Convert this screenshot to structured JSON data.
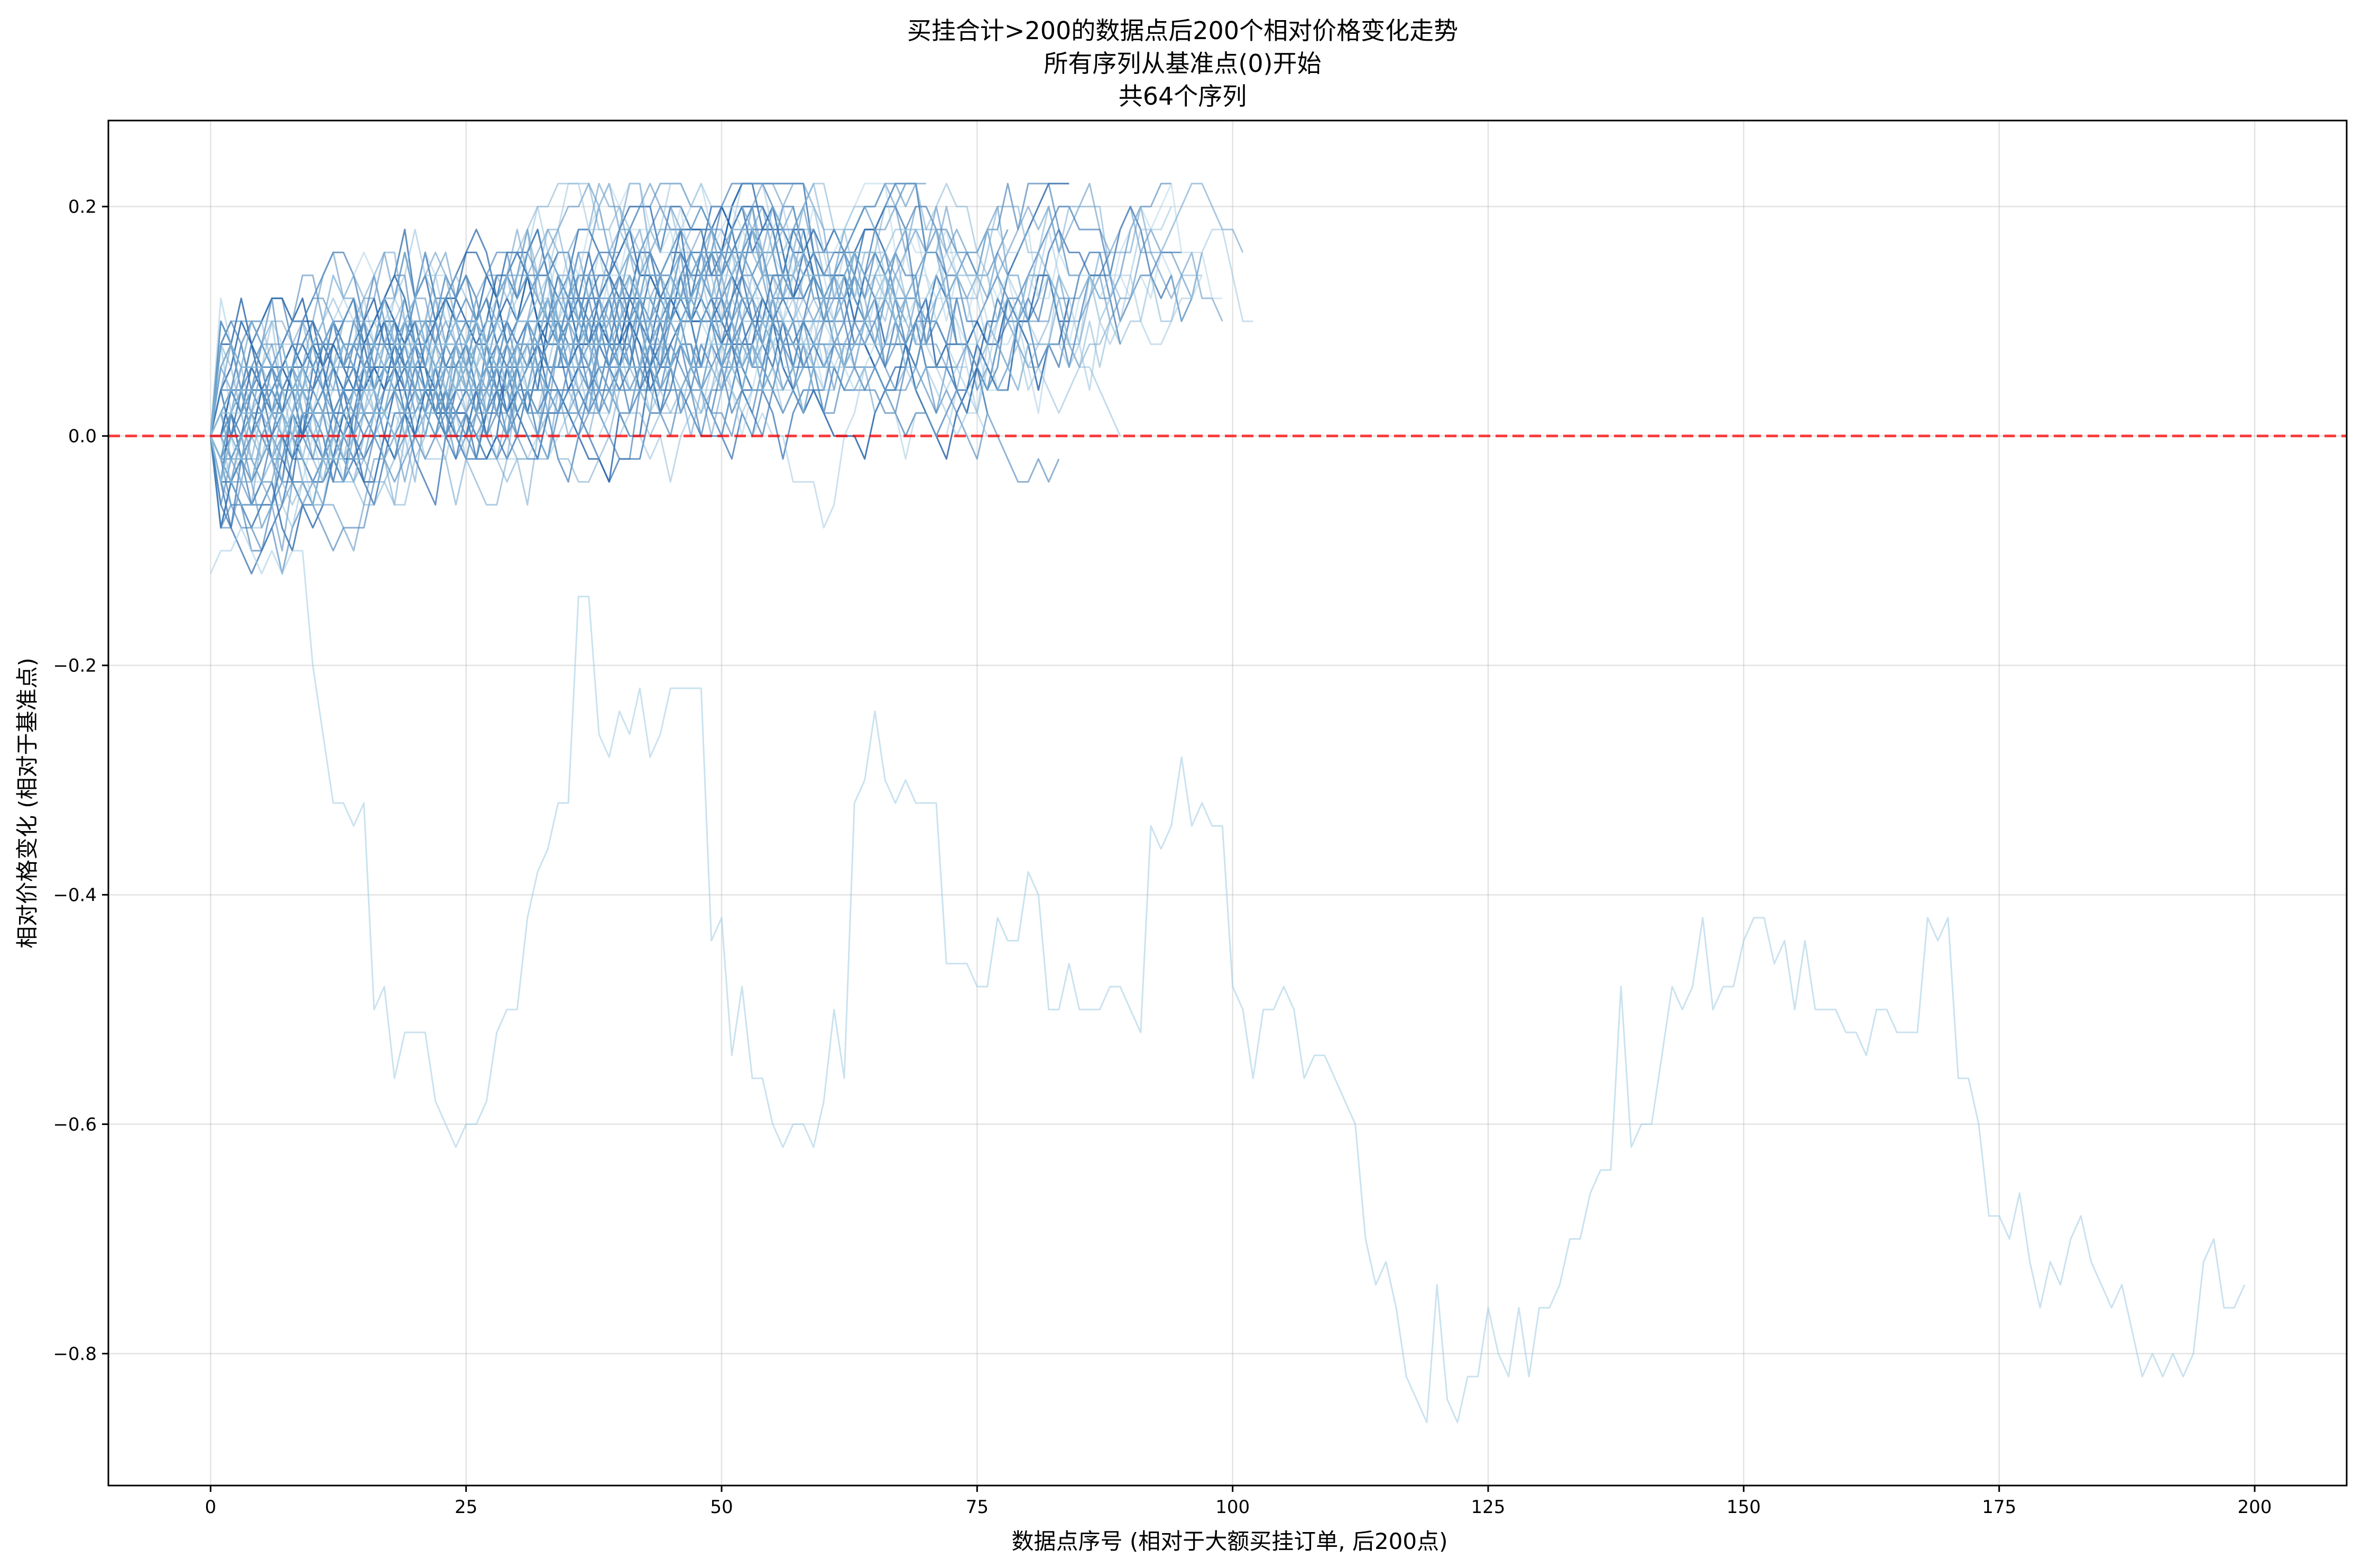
{
  "chart_data": {
    "type": "line",
    "title": [
      "买挂合计>200的数据点后200个相对价格变化走势",
      "所有序列从基准点(0)开始",
      "共64个序列"
    ],
    "xlabel": "数据点序号 (相对于大额买挂订单, 后200点)",
    "ylabel": "相对价格变化 (相对于基准点)",
    "xlim": [
      -10,
      209
    ],
    "ylim": [
      -0.915,
      0.275
    ],
    "xticks": [
      0,
      25,
      50,
      75,
      100,
      125,
      150,
      175,
      200
    ],
    "yticks": [
      0.2,
      0.0,
      -0.2,
      -0.4,
      -0.6,
      -0.8
    ],
    "ytick_labels": [
      "0.2",
      "0.0",
      "−0.2",
      "−0.4",
      "−0.6",
      "−0.8"
    ],
    "grid": true,
    "legend": false,
    "reference_line": {
      "y": 0.0,
      "style": "dashed",
      "color": "#ff0000"
    },
    "series_count": 64,
    "colors": {
      "dark": "#0b4f9c",
      "light": "#9ecae1"
    },
    "series": [
      {
        "x": [
          0,
          1,
          2,
          3,
          4,
          5,
          6,
          7,
          8,
          9,
          10,
          11,
          12,
          13,
          14,
          15,
          16,
          17,
          18,
          19,
          20,
          21,
          22,
          23,
          24,
          25,
          26,
          27,
          28,
          29,
          30,
          31,
          32,
          33,
          34,
          35,
          36,
          37,
          38,
          39,
          40,
          41,
          42,
          43,
          44,
          45,
          46,
          47,
          48,
          49,
          50,
          51,
          52,
          53,
          54,
          55,
          56,
          57,
          58,
          59,
          60,
          61,
          62,
          63,
          64,
          65,
          66,
          67,
          68,
          69,
          70,
          71,
          72,
          73,
          74,
          75,
          76,
          77,
          78,
          79,
          80,
          81,
          82,
          83,
          84,
          85,
          86,
          87,
          88,
          89,
          90,
          91,
          92,
          93,
          94,
          95,
          96,
          97,
          98,
          99,
          100,
          101,
          102,
          103,
          104,
          105,
          106,
          107,
          108,
          109,
          110,
          111,
          112,
          113,
          114,
          115,
          116,
          117,
          118,
          119,
          120,
          121,
          122,
          123,
          124,
          125,
          126,
          127,
          128,
          129,
          130,
          131,
          132,
          133,
          134,
          135,
          136,
          137,
          138,
          139,
          140,
          141,
          142,
          143,
          144,
          145,
          146,
          147,
          148,
          149,
          150,
          151,
          152,
          153,
          154,
          155,
          156,
          157,
          158,
          159,
          160,
          161,
          162,
          163,
          164,
          165,
          166,
          167,
          168,
          169,
          170,
          171,
          172,
          173,
          174,
          175,
          176,
          177,
          178,
          179,
          180,
          181,
          182,
          183,
          184,
          185,
          186,
          187,
          188,
          189,
          190,
          191,
          192,
          193,
          194,
          195,
          196,
          197,
          198,
          199
        ],
        "values": [
          -0.12,
          -0.1,
          -0.1,
          -0.08,
          -0.1,
          -0.12,
          -0.1,
          -0.12,
          -0.1,
          -0.1,
          -0.2,
          -0.26,
          -0.32,
          -0.32,
          -0.34,
          -0.32,
          -0.5,
          -0.48,
          -0.56,
          -0.52,
          -0.52,
          -0.52,
          -0.58,
          -0.6,
          -0.62,
          -0.6,
          -0.6,
          -0.58,
          -0.52,
          -0.5,
          -0.5,
          -0.42,
          -0.38,
          -0.36,
          -0.32,
          -0.32,
          -0.14,
          -0.14,
          -0.26,
          -0.28,
          -0.24,
          -0.26,
          -0.22,
          -0.28,
          -0.26,
          -0.22,
          -0.22,
          -0.22,
          -0.22,
          -0.44,
          -0.42,
          -0.54,
          -0.48,
          -0.56,
          -0.56,
          -0.6,
          -0.62,
          -0.6,
          -0.6,
          -0.62,
          -0.58,
          -0.5,
          -0.56,
          -0.32,
          -0.3,
          -0.24,
          -0.3,
          -0.32,
          -0.3,
          -0.32,
          -0.32,
          -0.32,
          -0.46,
          -0.46,
          -0.46,
          -0.48,
          -0.48,
          -0.42,
          -0.44,
          -0.44,
          -0.38,
          -0.4,
          -0.5,
          -0.5,
          -0.46,
          -0.5,
          -0.5,
          -0.5,
          -0.48,
          -0.48,
          -0.5,
          -0.52,
          -0.34,
          -0.36,
          -0.34,
          -0.28,
          -0.34,
          -0.32,
          -0.34,
          -0.34,
          -0.48,
          -0.5,
          -0.56,
          -0.5,
          -0.5,
          -0.48,
          -0.5,
          -0.56,
          -0.54,
          -0.54,
          -0.56,
          -0.58,
          -0.6,
          -0.7,
          -0.74,
          -0.72,
          -0.76,
          -0.82,
          -0.84,
          -0.86,
          -0.74,
          -0.84,
          -0.86,
          -0.82,
          -0.82,
          -0.76,
          -0.8,
          -0.82,
          -0.76,
          -0.82,
          -0.76,
          -0.76,
          -0.74,
          -0.7,
          -0.7,
          -0.66,
          -0.64,
          -0.64,
          -0.48,
          -0.62,
          -0.6,
          -0.6,
          -0.54,
          -0.48,
          -0.5,
          -0.48,
          -0.42,
          -0.5,
          -0.48,
          -0.48,
          -0.44,
          -0.42,
          -0.42,
          -0.46,
          -0.44,
          -0.5,
          -0.44,
          -0.5,
          -0.5,
          -0.5,
          -0.52,
          -0.52,
          -0.54,
          -0.5,
          -0.5,
          -0.52,
          -0.52,
          -0.52,
          -0.42,
          -0.44,
          -0.42,
          -0.56,
          -0.56,
          -0.6,
          -0.68,
          -0.68,
          -0.7,
          -0.66,
          -0.72,
          -0.76,
          -0.72,
          -0.74,
          -0.7,
          -0.68,
          -0.72,
          -0.74,
          -0.76,
          -0.74,
          -0.78,
          -0.82,
          -0.8,
          -0.82,
          -0.8,
          -0.82,
          -0.8,
          -0.72,
          -0.7,
          -0.76,
          -0.76,
          -0.74
        ]
      }
    ]
  }
}
